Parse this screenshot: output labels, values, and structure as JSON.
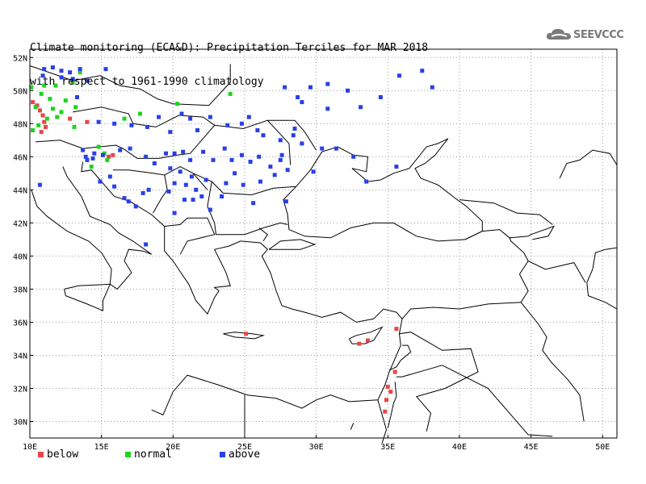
{
  "title": {
    "line1": "Climate monitoring (ECA&D): Precipitation Terciles for MAR 2018",
    "line2": "with respect to 1961-1990 climatology"
  },
  "logo": {
    "text": "SEEVCCC"
  },
  "axes": {
    "lon_min": 10,
    "lon_max": 51,
    "lat_min": 29,
    "lat_max": 52.5,
    "lon_ticks": [
      {
        "v": 10,
        "label": "10E"
      },
      {
        "v": 15,
        "label": "15E"
      },
      {
        "v": 20,
        "label": "20E"
      },
      {
        "v": 25,
        "label": "25E"
      },
      {
        "v": 30,
        "label": "30E"
      },
      {
        "v": 35,
        "label": "35E"
      },
      {
        "v": 40,
        "label": "40E"
      },
      {
        "v": 45,
        "label": "45E"
      },
      {
        "v": 50,
        "label": "50E"
      }
    ],
    "lat_ticks": [
      {
        "v": 30,
        "label": "30N"
      },
      {
        "v": 32,
        "label": "32N"
      },
      {
        "v": 34,
        "label": "34N"
      },
      {
        "v": 36,
        "label": "36N"
      },
      {
        "v": 38,
        "label": "38N"
      },
      {
        "v": 40,
        "label": "40N"
      },
      {
        "v": 42,
        "label": "42N"
      },
      {
        "v": 44,
        "label": "44N"
      },
      {
        "v": 46,
        "label": "46N"
      },
      {
        "v": 48,
        "label": "48N"
      },
      {
        "v": 50,
        "label": "50N"
      },
      {
        "v": 52,
        "label": "52N"
      }
    ]
  },
  "colors": {
    "below": "#e84545",
    "normal": "#1ed41e",
    "above": "#2a3fe8",
    "grid": "#9a9a9a"
  },
  "legend": [
    {
      "key": "below",
      "label": "below"
    },
    {
      "key": "normal",
      "label": "normal"
    },
    {
      "key": "above",
      "label": "above"
    }
  ],
  "chart_data": {
    "type": "scatter",
    "stations": {
      "below": [
        [
          10.2,
          49.3
        ],
        [
          10.5,
          49.1
        ],
        [
          10.7,
          48.8
        ],
        [
          10.9,
          48.5
        ],
        [
          11.0,
          48.1
        ],
        [
          11.1,
          47.8
        ],
        [
          10.8,
          47.5
        ],
        [
          12.8,
          48.3
        ],
        [
          14.0,
          48.1
        ],
        [
          15.5,
          46.0
        ],
        [
          15.8,
          46.1
        ],
        [
          25.1,
          35.3
        ],
        [
          33.0,
          34.7
        ],
        [
          33.6,
          34.9
        ],
        [
          35.6,
          35.6
        ],
        [
          35.5,
          33.0
        ],
        [
          35.0,
          32.1
        ],
        [
          35.2,
          31.8
        ],
        [
          34.9,
          31.3
        ],
        [
          34.8,
          30.6
        ]
      ],
      "normal": [
        [
          10.1,
          50.2
        ],
        [
          11.0,
          50.3
        ],
        [
          11.8,
          50.3
        ],
        [
          13.0,
          50.5
        ],
        [
          13.5,
          51.1
        ],
        [
          10.8,
          49.8
        ],
        [
          11.4,
          49.5
        ],
        [
          12.5,
          49.4
        ],
        [
          10.4,
          49.0
        ],
        [
          11.6,
          48.9
        ],
        [
          12.2,
          48.7
        ],
        [
          13.2,
          49.0
        ],
        [
          11.2,
          48.3
        ],
        [
          11.9,
          48.4
        ],
        [
          10.6,
          47.9
        ],
        [
          10.2,
          47.6
        ],
        [
          13.1,
          47.8
        ],
        [
          16.6,
          48.3
        ],
        [
          17.7,
          48.6
        ],
        [
          20.3,
          49.2
        ],
        [
          24.0,
          49.8
        ],
        [
          14.8,
          46.6
        ],
        [
          15.2,
          46.2
        ],
        [
          15.4,
          45.8
        ],
        [
          14.3,
          45.4
        ]
      ],
      "above": [
        [
          11.0,
          51.3
        ],
        [
          11.6,
          51.4
        ],
        [
          12.2,
          51.2
        ],
        [
          12.8,
          51.1
        ],
        [
          13.5,
          51.3
        ],
        [
          15.3,
          51.3
        ],
        [
          10.9,
          50.9
        ],
        [
          12.2,
          50.8
        ],
        [
          13.0,
          50.7
        ],
        [
          14.0,
          50.6
        ],
        [
          13.3,
          49.6
        ],
        [
          14.8,
          48.1
        ],
        [
          15.9,
          48.0
        ],
        [
          17.1,
          47.9
        ],
        [
          18.2,
          47.8
        ],
        [
          19.0,
          48.4
        ],
        [
          20.6,
          48.6
        ],
        [
          21.2,
          48.3
        ],
        [
          19.8,
          47.5
        ],
        [
          21.7,
          47.6
        ],
        [
          22.6,
          48.4
        ],
        [
          23.8,
          47.9
        ],
        [
          24.8,
          48.0
        ],
        [
          25.3,
          48.4
        ],
        [
          25.9,
          47.6
        ],
        [
          26.3,
          47.3
        ],
        [
          27.5,
          47.0
        ],
        [
          28.4,
          47.3
        ],
        [
          29.0,
          46.8
        ],
        [
          30.4,
          46.5
        ],
        [
          13.7,
          46.4
        ],
        [
          14.0,
          45.8
        ],
        [
          13.9,
          46.0
        ],
        [
          14.4,
          45.9
        ],
        [
          14.5,
          46.2
        ],
        [
          15.1,
          46.1
        ],
        [
          16.3,
          46.4
        ],
        [
          17.0,
          46.5
        ],
        [
          18.1,
          46.0
        ],
        [
          18.7,
          45.6
        ],
        [
          19.5,
          46.2
        ],
        [
          20.1,
          46.2
        ],
        [
          20.7,
          46.3
        ],
        [
          21.2,
          45.8
        ],
        [
          22.1,
          46.3
        ],
        [
          22.8,
          45.8
        ],
        [
          23.6,
          46.5
        ],
        [
          24.1,
          45.8
        ],
        [
          24.8,
          46.1
        ],
        [
          25.4,
          45.7
        ],
        [
          26.0,
          46.0
        ],
        [
          26.8,
          45.4
        ],
        [
          27.5,
          45.8
        ],
        [
          28.0,
          45.2
        ],
        [
          27.1,
          44.9
        ],
        [
          26.1,
          44.5
        ],
        [
          24.9,
          44.3
        ],
        [
          24.3,
          45.0
        ],
        [
          23.7,
          44.4
        ],
        [
          22.3,
          44.6
        ],
        [
          21.3,
          44.8
        ],
        [
          20.5,
          45.1
        ],
        [
          19.8,
          45.3
        ],
        [
          20.1,
          44.4
        ],
        [
          20.9,
          44.3
        ],
        [
          21.6,
          44.0
        ],
        [
          22.0,
          43.6
        ],
        [
          20.8,
          43.4
        ],
        [
          19.7,
          43.9
        ],
        [
          18.3,
          44.0
        ],
        [
          17.9,
          43.8
        ],
        [
          16.6,
          43.5
        ],
        [
          16.9,
          43.3
        ],
        [
          17.4,
          43.0
        ],
        [
          15.9,
          44.2
        ],
        [
          15.6,
          44.8
        ],
        [
          14.9,
          44.5
        ],
        [
          10.7,
          44.3
        ],
        [
          20.1,
          42.6
        ],
        [
          21.4,
          43.4
        ],
        [
          22.6,
          42.8
        ],
        [
          18.1,
          40.7
        ],
        [
          23.4,
          43.6
        ],
        [
          27.6,
          46.1
        ],
        [
          28.5,
          47.7
        ],
        [
          30.8,
          50.4
        ],
        [
          29.0,
          49.3
        ],
        [
          27.8,
          50.2
        ],
        [
          29.6,
          50.2
        ],
        [
          32.2,
          50.0
        ],
        [
          33.1,
          49.0
        ],
        [
          34.5,
          49.6
        ],
        [
          35.8,
          50.9
        ],
        [
          37.4,
          51.2
        ],
        [
          38.1,
          50.2
        ],
        [
          30.8,
          48.9
        ],
        [
          28.7,
          49.6
        ],
        [
          31.4,
          46.5
        ],
        [
          32.6,
          46.0
        ],
        [
          33.5,
          44.5
        ],
        [
          35.6,
          45.4
        ],
        [
          29.8,
          45.1
        ],
        [
          27.9,
          43.3
        ],
        [
          25.6,
          43.2
        ]
      ]
    }
  }
}
